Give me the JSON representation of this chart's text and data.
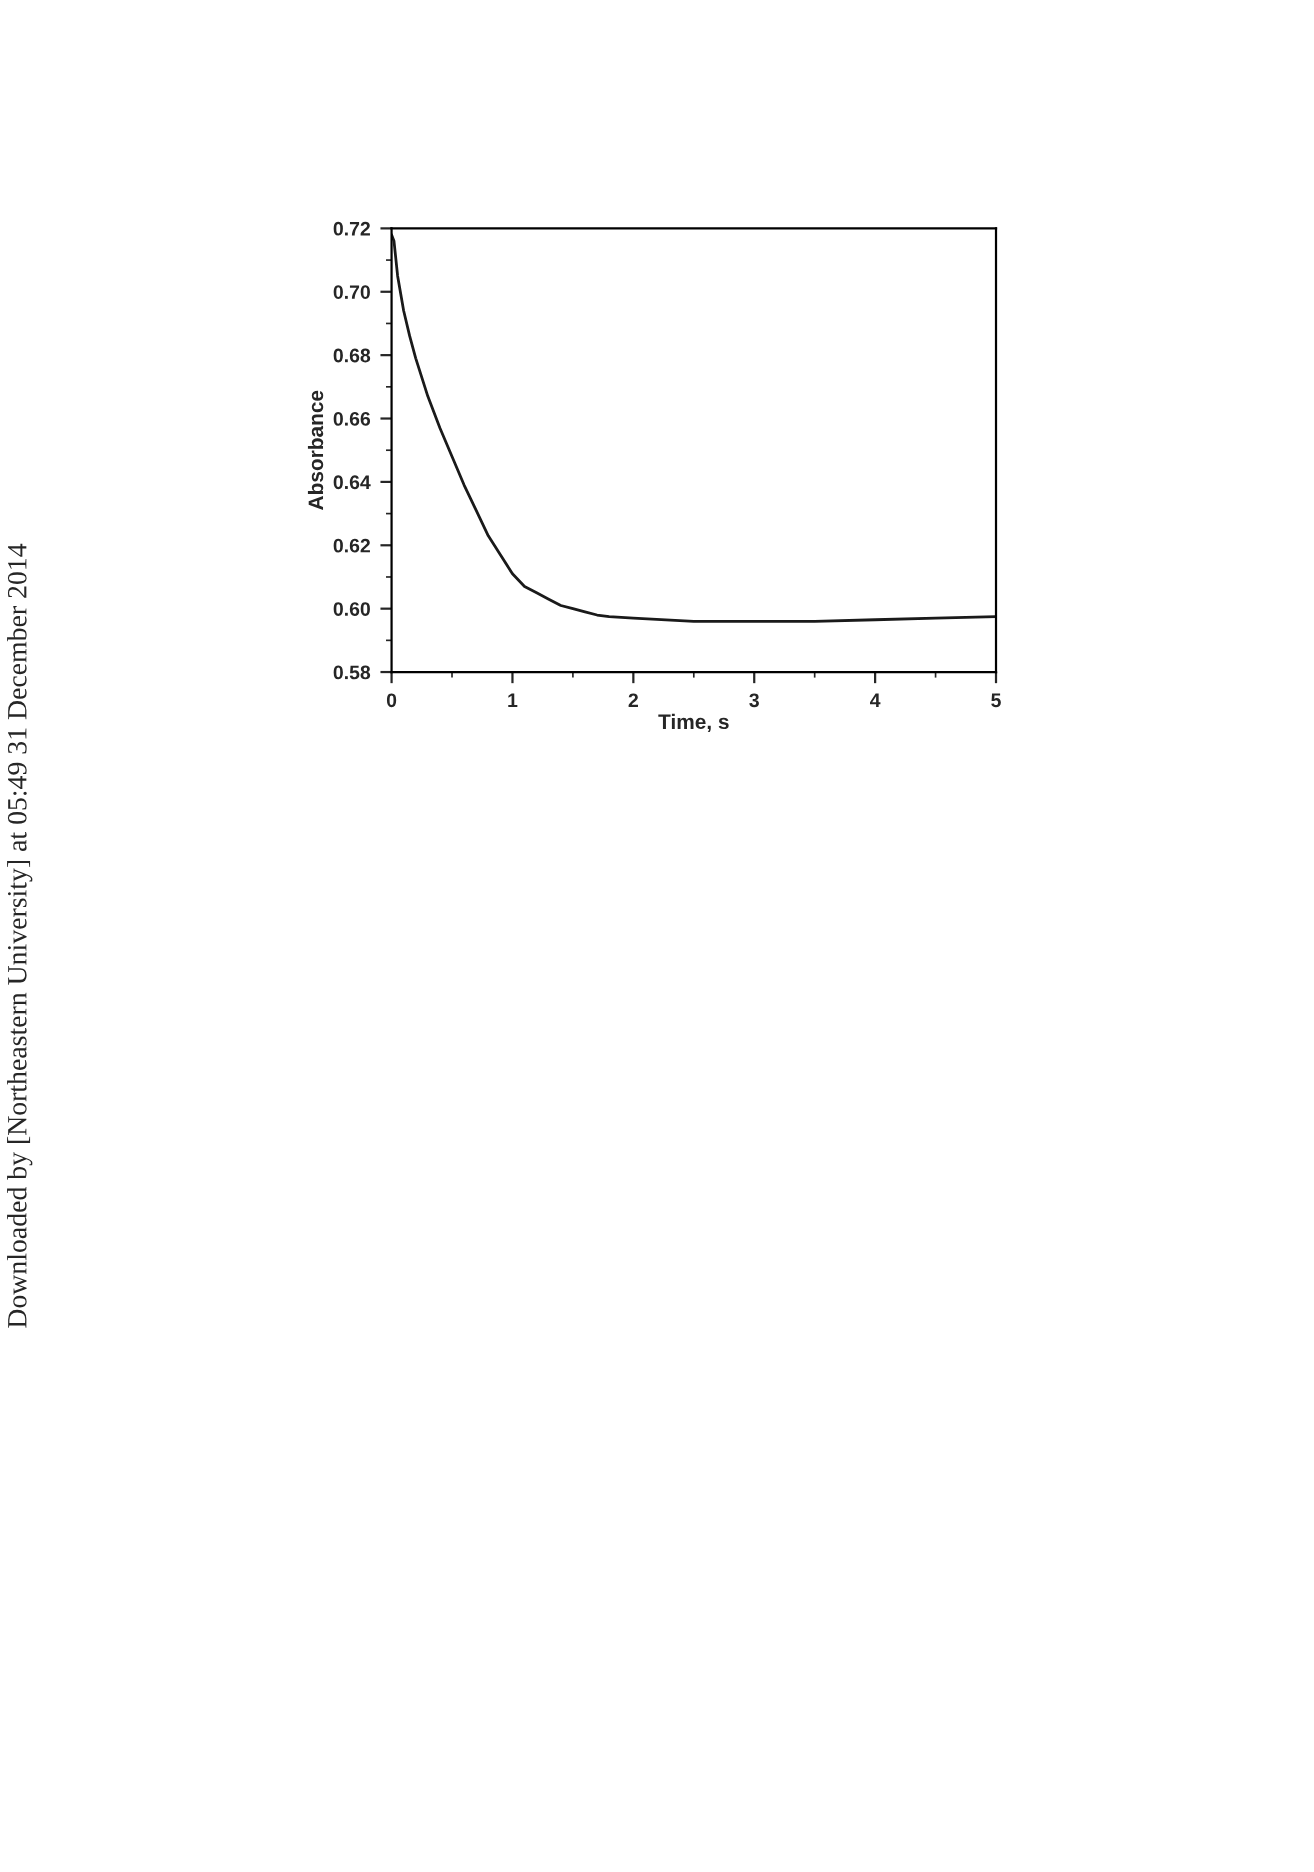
{
  "chart_data": {
    "type": "line",
    "xlabel": "Time, s",
    "ylabel": "Absorbance",
    "x": [
      0,
      0.02,
      0.05,
      0.1,
      0.15,
      0.2,
      0.3,
      0.4,
      0.5,
      0.6,
      0.7,
      0.8,
      0.9,
      1.0,
      1.1,
      1.2,
      1.3,
      1.4,
      1.5,
      1.6,
      1.7,
      1.8,
      2.0,
      2.5,
      3.0,
      3.5,
      4.0,
      4.5,
      5.0
    ],
    "series": [
      {
        "color": "#1a1a1a",
        "values": [
          0.718,
          0.716,
          0.705,
          0.694,
          0.686,
          0.679,
          0.667,
          0.657,
          0.648,
          0.639,
          0.631,
          0.623,
          0.617,
          0.611,
          0.607,
          0.605,
          0.603,
          0.601,
          0.6,
          0.599,
          0.598,
          0.5975,
          0.597,
          0.596,
          0.596,
          0.596,
          0.5965,
          0.597,
          0.5975
        ]
      }
    ],
    "xlim": [
      0,
      5
    ],
    "ylim": [
      0.58,
      0.72
    ],
    "xticks": [
      0,
      1,
      2,
      3,
      4,
      5
    ],
    "yticks": [
      {
        "value": 0.58,
        "label": "0.58"
      },
      {
        "value": 0.6,
        "label": "0.60"
      },
      {
        "value": 0.62,
        "label": "0.62"
      },
      {
        "value": 0.64,
        "label": "0.64"
      },
      {
        "value": 0.66,
        "label": "0.66"
      },
      {
        "value": 0.68,
        "label": "0.68"
      },
      {
        "value": 0.7,
        "label": "0.70"
      },
      {
        "value": 0.72,
        "label": "0.72"
      }
    ],
    "grid": false,
    "marker": "none",
    "line_style": "solid",
    "annotations": [
      "Downloaded by [Northeastern University] at 05:49 31 December 2014"
    ]
  }
}
